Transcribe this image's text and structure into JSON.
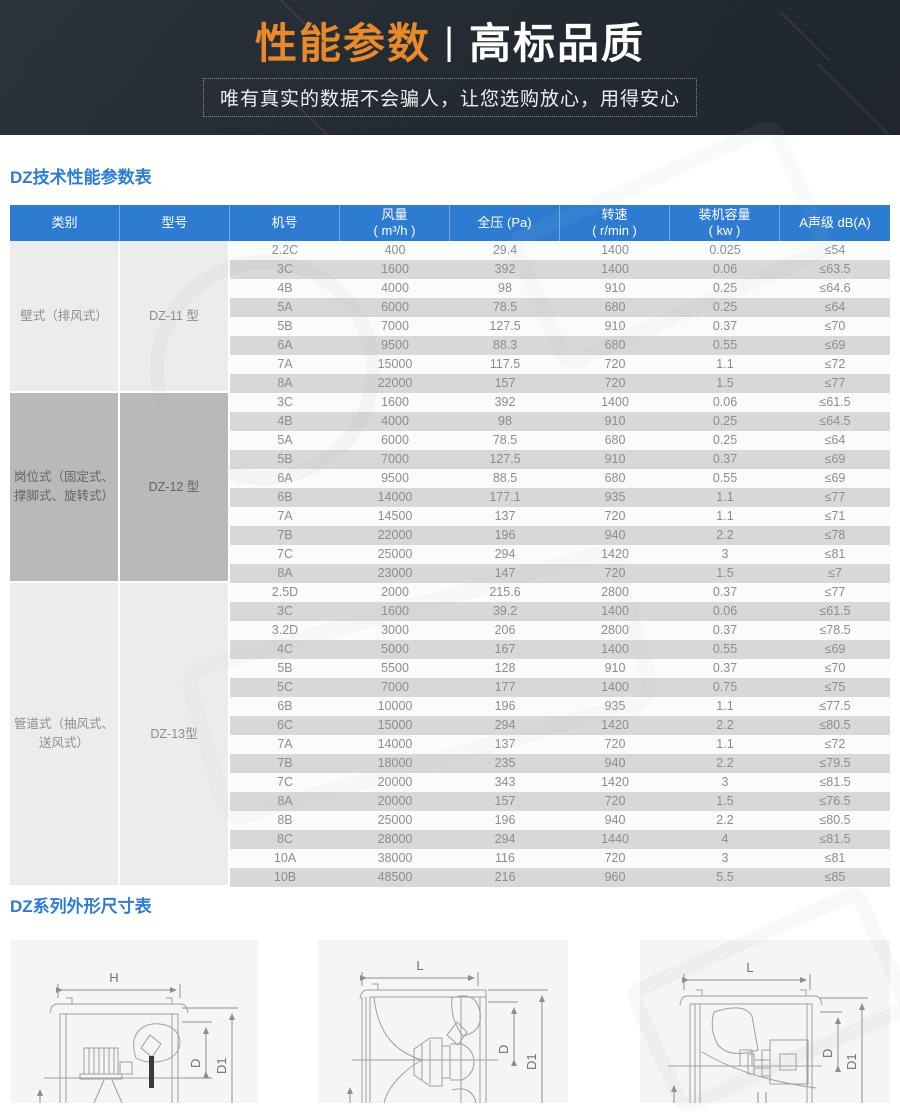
{
  "banner": {
    "title_highlight": "性能参数",
    "title_separator": "|",
    "title_rest": "高标品质",
    "subtitle": "唯有真实的数据不会骗人，让您选购放心，用得安心",
    "accent_color": "#e8892b",
    "background_color": "#242a32"
  },
  "spec_section": {
    "heading": "DZ技术性能参数表"
  },
  "dims_section": {
    "heading": "DZ系列外形尺寸表"
  },
  "table": {
    "header_color": "#2e7cd2",
    "stripe_colors": {
      "light": "#fbfbfb",
      "dark": "#d8d8d8"
    },
    "columns": [
      {
        "label": "类别",
        "unit": ""
      },
      {
        "label": "型号",
        "unit": ""
      },
      {
        "label": "机号",
        "unit": ""
      },
      {
        "label": "风量",
        "unit": "( m³/h )"
      },
      {
        "label": "全压 (Pa)",
        "unit": ""
      },
      {
        "label": "转速",
        "unit": "( r/min )"
      },
      {
        "label": "装机容量",
        "unit": "( kw )"
      },
      {
        "label": "A声级 dB(A)",
        "unit": ""
      }
    ],
    "groups": [
      {
        "category": "壁式（排风式）",
        "model": "DZ-11 型",
        "shade": "light",
        "rows": [
          [
            "2.2C",
            "400",
            "29.4",
            "1400",
            "0.025",
            "≤54"
          ],
          [
            "3C",
            "1600",
            "392",
            "1400",
            "0.06",
            "≤63.5"
          ],
          [
            "4B",
            "4000",
            "98",
            "910",
            "0.25",
            "≤64.6"
          ],
          [
            "5A",
            "6000",
            "78.5",
            "680",
            "0.25",
            "≤64"
          ],
          [
            "5B",
            "7000",
            "127.5",
            "910",
            "0.37",
            "≤70"
          ],
          [
            "6A",
            "9500",
            "88.3",
            "680",
            "0.55",
            "≤69"
          ],
          [
            "7A",
            "15000",
            "117.5",
            "720",
            "1.1",
            "≤72"
          ],
          [
            "8A",
            "22000",
            "157",
            "720",
            "1.5",
            "≤77"
          ]
        ]
      },
      {
        "category": "岗位式（固定式、撑脚式、旋转式）",
        "model": "DZ-12 型",
        "shade": "dark",
        "rows": [
          [
            "3C",
            "1600",
            "392",
            "1400",
            "0.06",
            "≤61.5"
          ],
          [
            "4B",
            "4000",
            "98",
            "910",
            "0.25",
            "≤64.5"
          ],
          [
            "5A",
            "6000",
            "78.5",
            "680",
            "0.25",
            "≤64"
          ],
          [
            "5B",
            "7000",
            "127.5",
            "910",
            "0.37",
            "≤69"
          ],
          [
            "6A",
            "9500",
            "88.5",
            "680",
            "0.55",
            "≤69"
          ],
          [
            "6B",
            "14000",
            "177.1",
            "935",
            "1.1",
            "≤77"
          ],
          [
            "7A",
            "14500",
            "137",
            "720",
            "1.1",
            "≤71"
          ],
          [
            "7B",
            "22000",
            "196",
            "940",
            "2.2",
            "≤78"
          ],
          [
            "7C",
            "25000",
            "294",
            "1420",
            "3",
            "≤81"
          ],
          [
            "8A",
            "23000",
            "147",
            "720",
            "1.5",
            "≤7"
          ]
        ]
      },
      {
        "category": "管道式（抽风式、送风式）",
        "model": "DZ-13型",
        "shade": "light",
        "rows": [
          [
            "2.5D",
            "2000",
            "215.6",
            "2800",
            "0.37",
            "≤77"
          ],
          [
            "3C",
            "1600",
            "39.2",
            "1400",
            "0.06",
            "≤61.5"
          ],
          [
            "3.2D",
            "3000",
            "206",
            "2800",
            "0.37",
            "≤78.5"
          ],
          [
            "4C",
            "5000",
            "167",
            "1400",
            "0.55",
            "≤69"
          ],
          [
            "5B",
            "5500",
            "128",
            "910",
            "0.37",
            "≤70"
          ],
          [
            "5C",
            "7000",
            "177",
            "1400",
            "0.75",
            "≤75"
          ],
          [
            "6B",
            "10000",
            "196",
            "935",
            "1.1",
            "≤77.5"
          ],
          [
            "6C",
            "15000",
            "294",
            "1420",
            "2.2",
            "≤80.5"
          ],
          [
            "7A",
            "14000",
            "137",
            "720",
            "1.1",
            "≤72"
          ],
          [
            "7B",
            "18000",
            "235",
            "940",
            "2.2",
            "≤79.5"
          ],
          [
            "7C",
            "20000",
            "343",
            "1420",
            "3",
            "≤81.5"
          ],
          [
            "8A",
            "20000",
            "157",
            "720",
            "1.5",
            "≤76.5"
          ],
          [
            "8B",
            "25000",
            "196",
            "940",
            "2.2",
            "≤80.5"
          ],
          [
            "8C",
            "28000",
            "294",
            "1440",
            "4",
            "≤81.5"
          ],
          [
            "10A",
            "38000",
            "116",
            "720",
            "3",
            "≤81"
          ],
          [
            "10B",
            "48500",
            "216",
            "960",
            "5.5",
            "≤85"
          ]
        ]
      }
    ]
  },
  "drawings": [
    {
      "top_label": "H",
      "dim_d": "D",
      "dim_d1": "D1"
    },
    {
      "top_label": "L",
      "dim_d": "D",
      "dim_d1": "D1"
    },
    {
      "top_label": "L",
      "dim_d": "D",
      "dim_d1": "D1"
    }
  ]
}
